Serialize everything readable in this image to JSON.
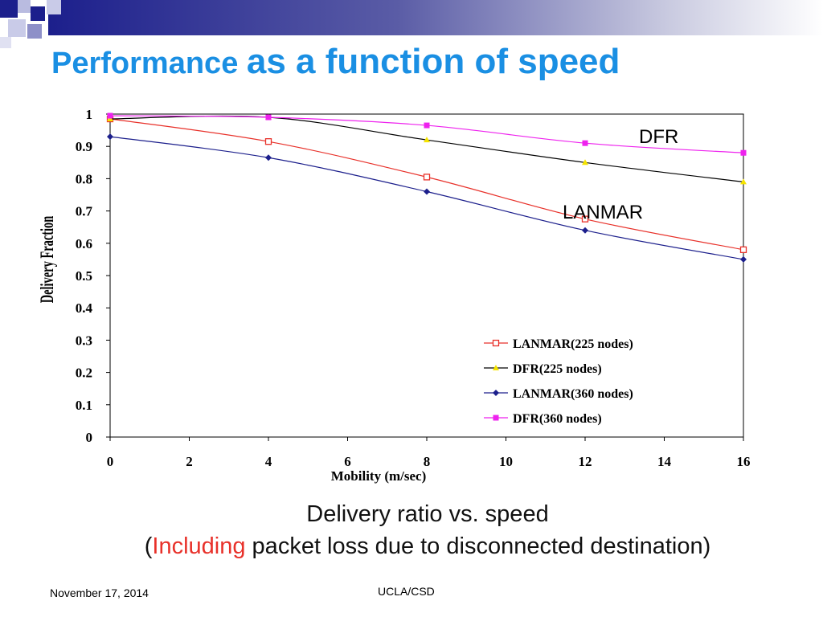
{
  "slide": {
    "title_part1": "Performance ",
    "title_part2": "as a function of speed",
    "caption_line1": "Delivery ratio vs. speed",
    "caption_line2_open": "(",
    "caption_line2_highlight": "Including",
    "caption_line2_rest": " packet loss due to disconnected destination)",
    "footer_date": "November 17, 2014",
    "footer_center": "UCLA/CSD",
    "accent_color": "#1a8fe3",
    "highlight_color": "#e8312a"
  },
  "chart_data": {
    "type": "line",
    "xlabel": "Mobility (m/sec)",
    "ylabel": "Delivery Fraction",
    "xlim": [
      0,
      16
    ],
    "ylim": [
      0,
      1
    ],
    "x_ticks": [
      "0",
      "2",
      "4",
      "6",
      "8",
      "10",
      "12",
      "14",
      "16"
    ],
    "y_ticks": [
      "0",
      "0.1",
      "0.2",
      "0.3",
      "0.4",
      "0.5",
      "0.6",
      "0.7",
      "0.8",
      "0.9",
      "1"
    ],
    "x": [
      0,
      4,
      8,
      12,
      16
    ],
    "series": [
      {
        "name": "LANMAR(225 nodes)",
        "color": "#e8312a",
        "marker": "open-square",
        "values": [
          0.985,
          0.915,
          0.805,
          0.675,
          0.58
        ]
      },
      {
        "name": "DFR(225 nodes)",
        "color": "#000000",
        "marker": "yellow-triangle",
        "values": [
          0.985,
          0.99,
          0.92,
          0.85,
          0.79
        ]
      },
      {
        "name": "LANMAR(360 nodes)",
        "color": "#1c1f8c",
        "marker": "diamond",
        "values": [
          0.93,
          0.865,
          0.76,
          0.64,
          0.55
        ]
      },
      {
        "name": "DFR(360 nodes)",
        "color": "#ee22ee",
        "marker": "filled-square",
        "values": [
          0.995,
          0.99,
          0.965,
          0.91,
          0.88
        ]
      }
    ],
    "annotations": [
      "DFR",
      "LANMAR"
    ],
    "legend_position": "bottom-right",
    "grid": false
  }
}
